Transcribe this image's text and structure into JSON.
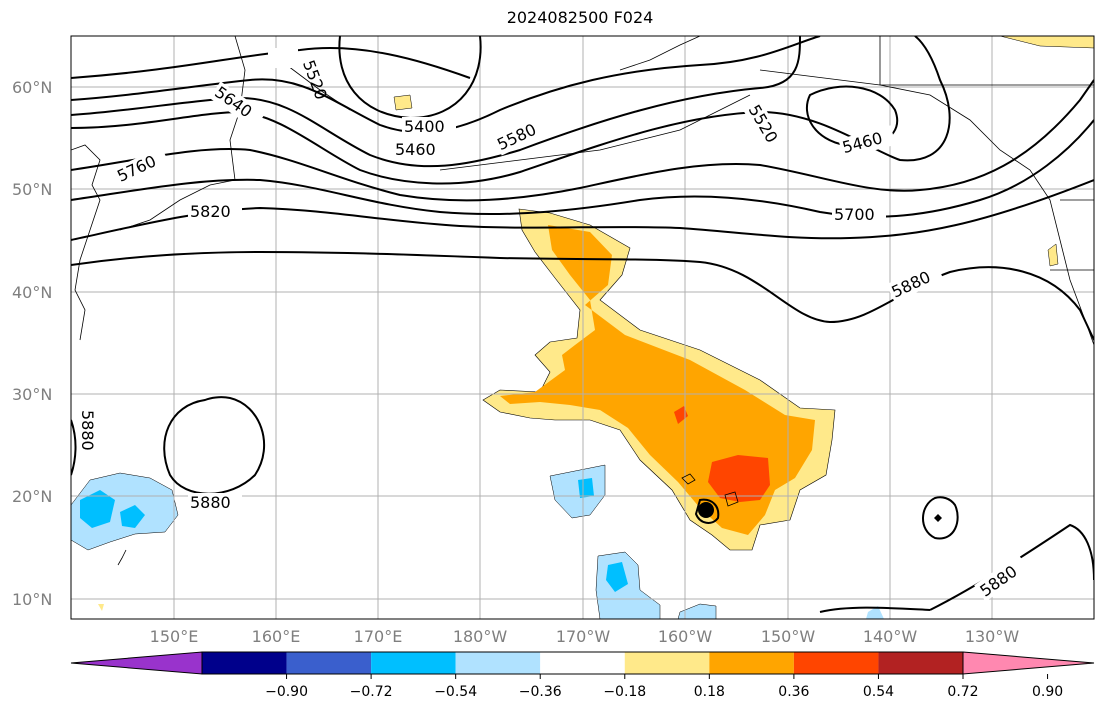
{
  "title": "2024082500 F024",
  "lat_labels": [
    "60°N",
    "50°N",
    "40°N",
    "30°N",
    "20°N",
    "10°N"
  ],
  "lon_labels": [
    "150°E",
    "160°E",
    "170°E",
    "180°W",
    "170°W",
    "160°W",
    "150°W",
    "140°W",
    "130°W"
  ],
  "contour_labels": [
    "5520",
    "5640",
    "5400",
    "5460",
    "5580",
    "5520",
    "5460",
    "5760",
    "5820",
    "5700",
    "5880",
    "5880",
    "5880",
    "5880"
  ],
  "colorbar": {
    "ticks": [
      "−0.90",
      "−0.72",
      "−0.54",
      "−0.36",
      "−0.18",
      "0.18",
      "0.36",
      "0.54",
      "0.72",
      "0.90"
    ],
    "colors": [
      "#9933cc",
      "#00008b",
      "#3a5fcd",
      "#00bfff",
      "#b0e2ff",
      "#ffffff",
      "#ffe98a",
      "#ffa500",
      "#ff4500",
      "#b22222",
      "#ff88b0"
    ]
  },
  "colors": {
    "light_yellow": "#ffe98a",
    "orange": "#ffa500",
    "red_orange": "#ff4500",
    "light_blue": "#b0e2ff",
    "deep_sky_blue": "#00bfff"
  }
}
